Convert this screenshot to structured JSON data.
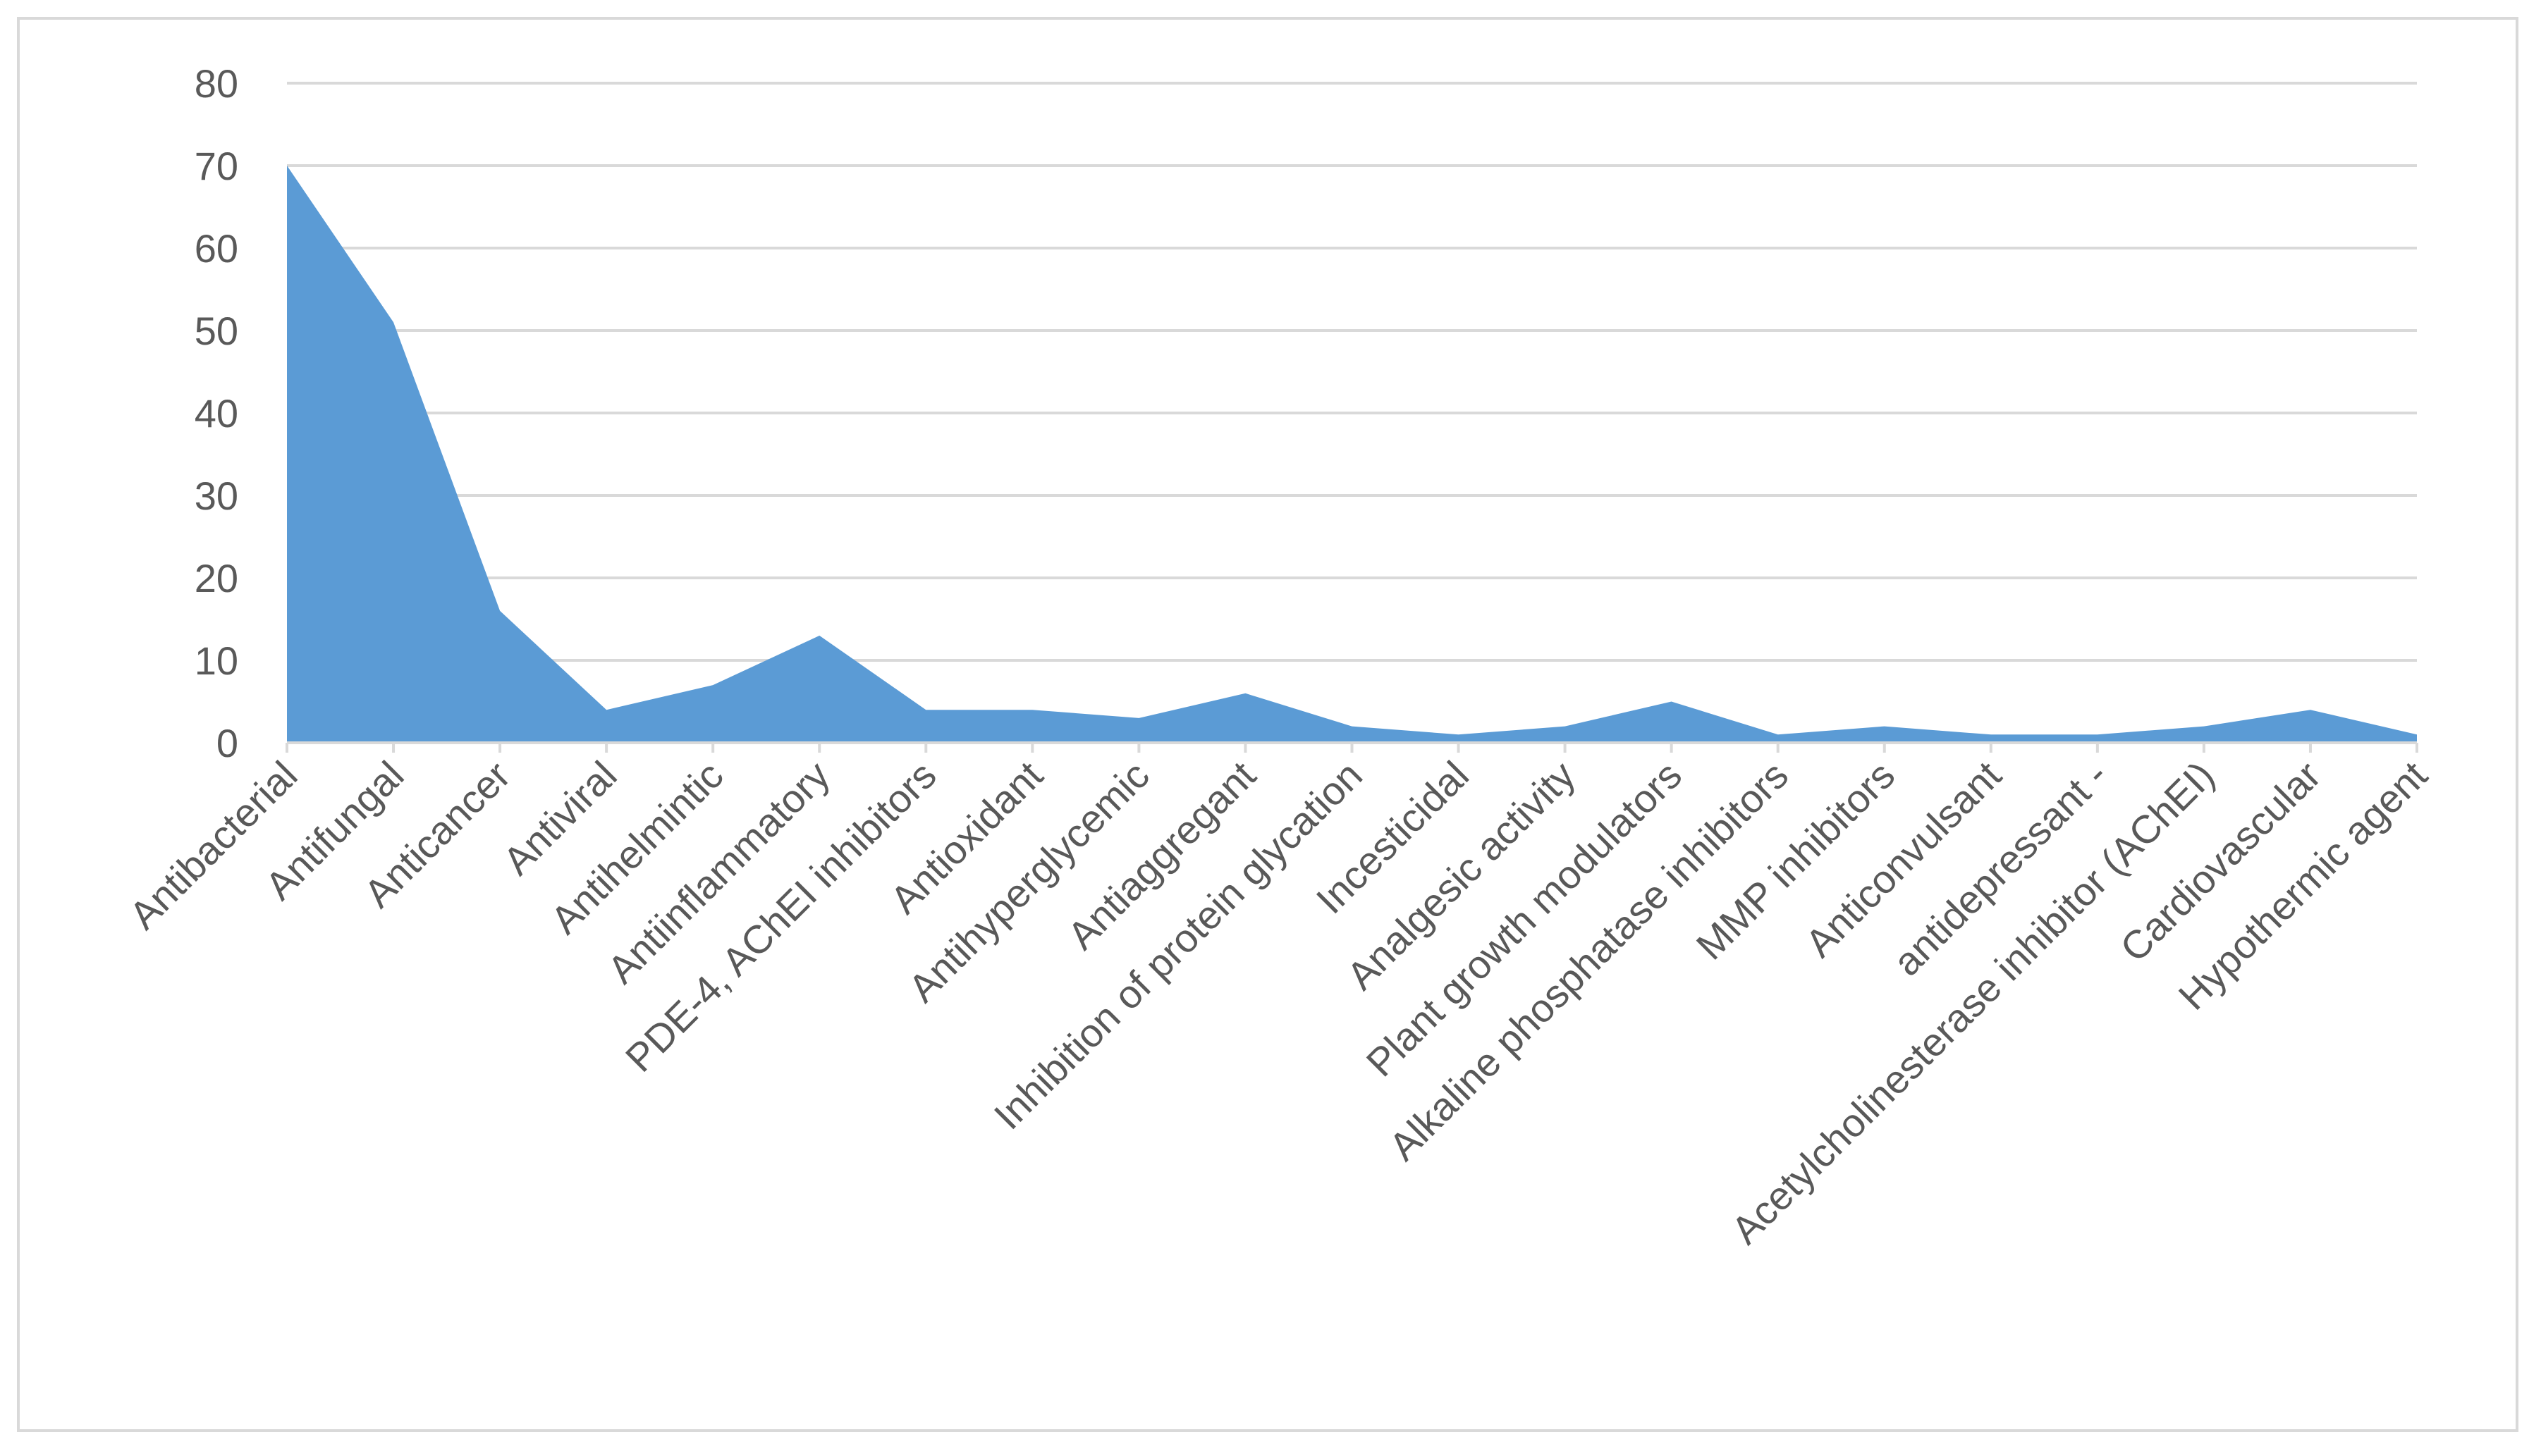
{
  "chart_data": {
    "type": "area",
    "title": "",
    "xlabel": "",
    "ylabel": "",
    "ylim": [
      0,
      80
    ],
    "yticks": [
      0,
      10,
      20,
      30,
      40,
      50,
      60,
      70,
      80
    ],
    "grid": true,
    "legend": "none",
    "colors": {
      "fill": "#5b9bd5",
      "grid": "#d9d9d9",
      "text": "#595959",
      "border": "#d9d9d9"
    },
    "categories": [
      "Antibacterial",
      "Antifungal",
      "Anticancer",
      "Antiviral",
      "Antihelmintic",
      "Antiinflammatory",
      "PDE-4, AChEI inhibitors",
      "Antioxidant",
      "Antihyperglycemic",
      "Antiaggregant",
      "Inhibition of protein glycation",
      "Incesticidal",
      "Analgesic activity",
      "Plant growth modulators",
      "Alkaline phosphatase inhibitors",
      "MMP inhibitors",
      "Anticonvulsant",
      "antidepressant -",
      "Acetylcholinesterase inhibitor (AChEI)",
      "Cardiovascular",
      "Hypothermic agent"
    ],
    "values": [
      70,
      51,
      16,
      4,
      7,
      13,
      4,
      4,
      3,
      6,
      2,
      1,
      2,
      5,
      1,
      2,
      1,
      1,
      2,
      4,
      1
    ]
  }
}
